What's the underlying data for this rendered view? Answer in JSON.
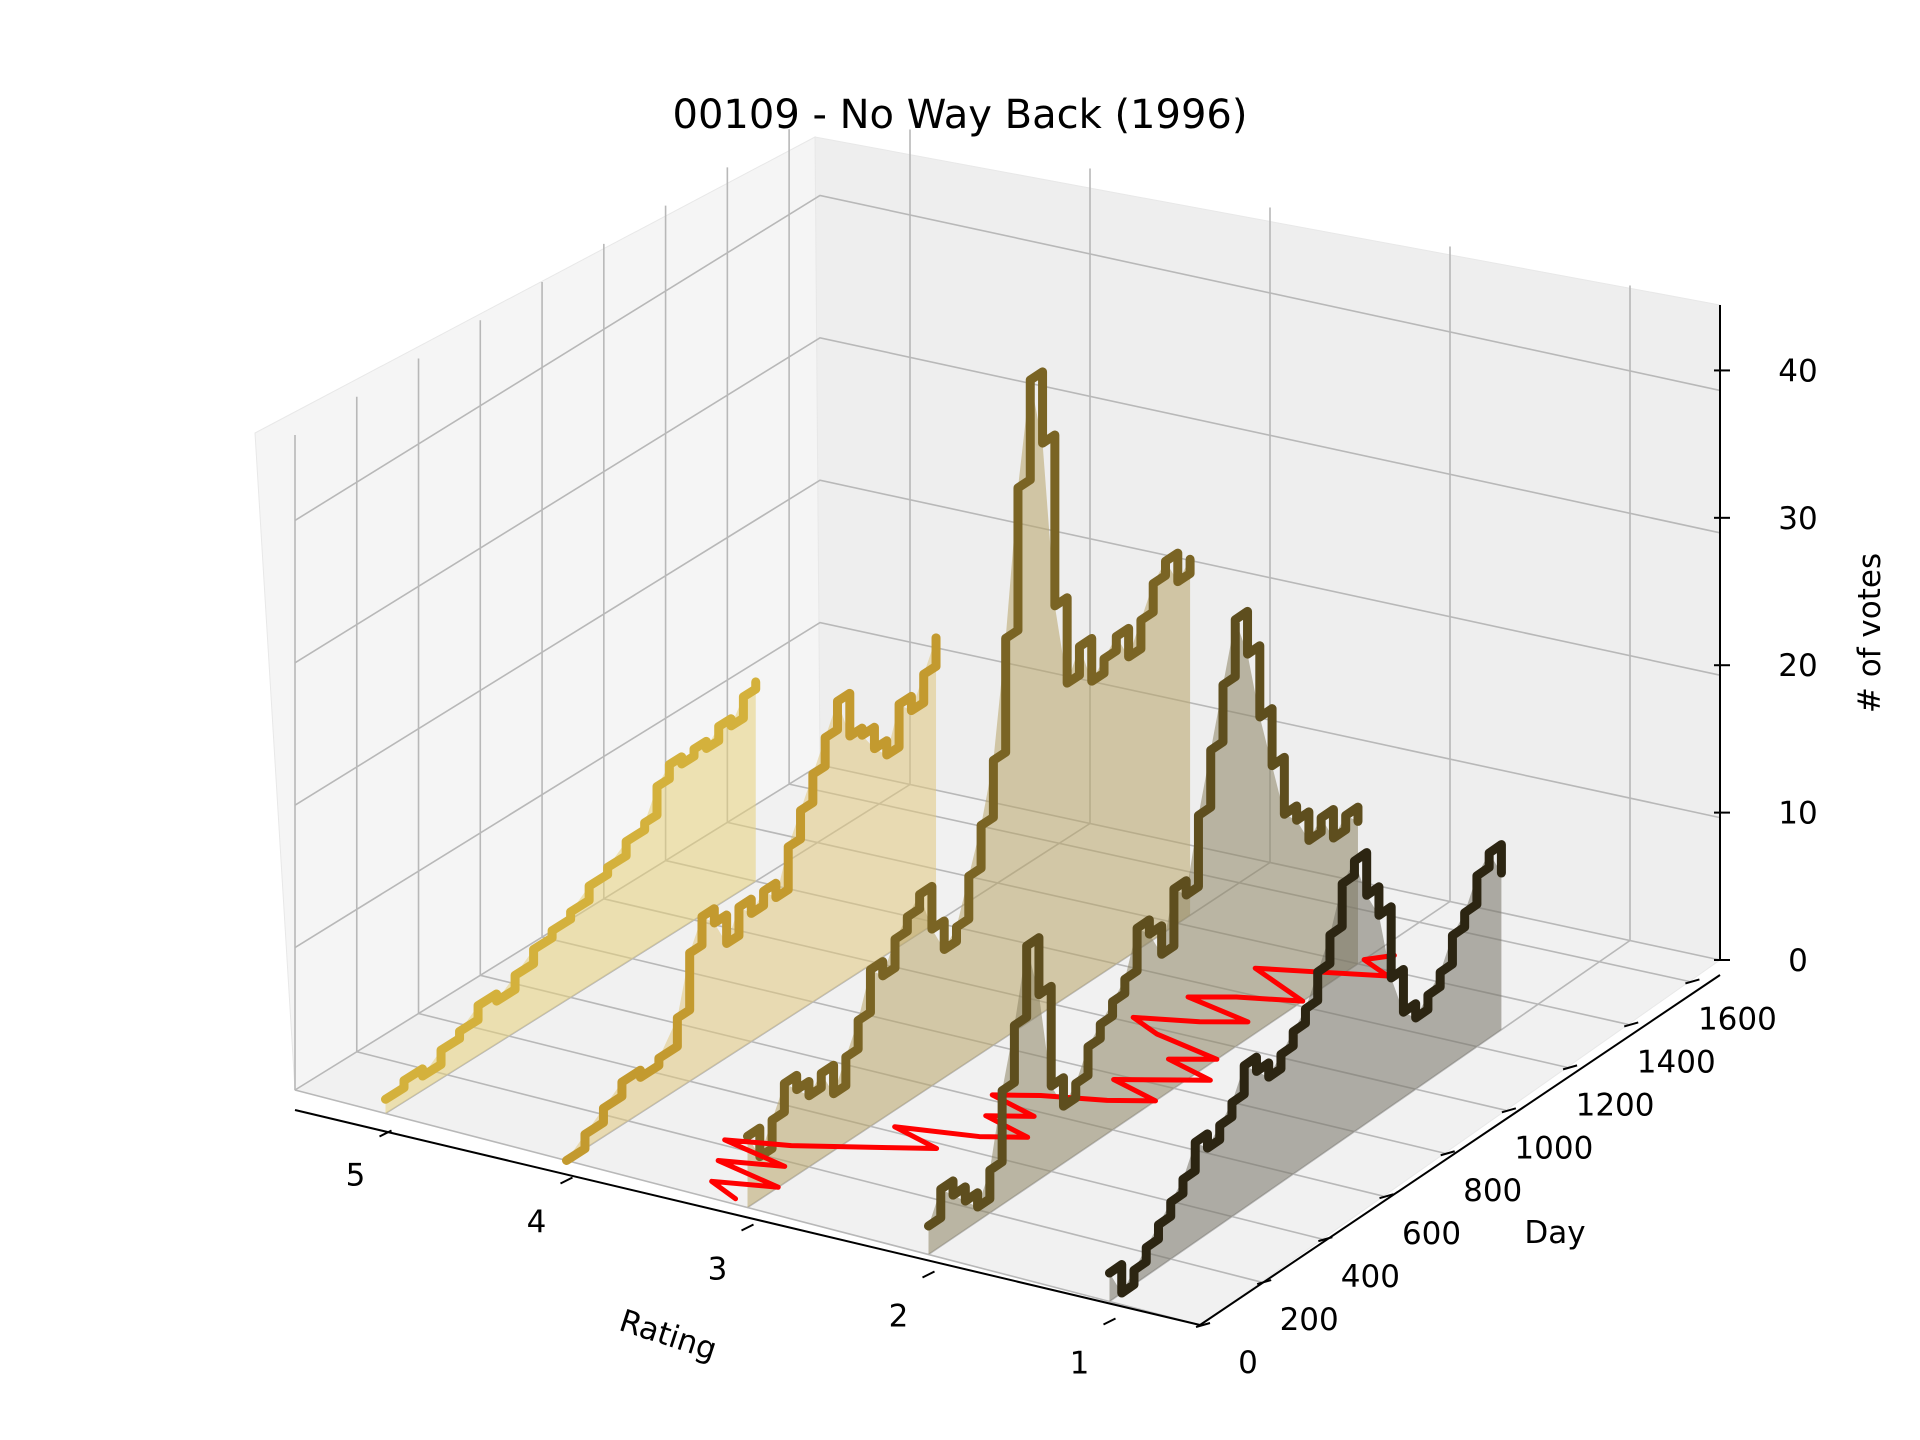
{
  "chart_data": {
    "type": "line3d",
    "title": "00109 - No Way Back (1996)",
    "xlabel": "Rating",
    "ylabel": "Day",
    "zlabel": "# of votes",
    "x_ticks": [
      "1",
      "2",
      "3",
      "4",
      "5"
    ],
    "y_ticks": [
      "0",
      "200",
      "400",
      "600",
      "800",
      "1000",
      "1200",
      "1400",
      "1600"
    ],
    "z_ticks": [
      "0",
      "10",
      "20",
      "30",
      "40"
    ],
    "xlim": [
      0.5,
      5.5
    ],
    "ylim": [
      0,
      1700
    ],
    "zlim": [
      0,
      46
    ],
    "grid": true,
    "series": [
      {
        "name": "5",
        "rating": 5,
        "color": "#d4b13c",
        "fill": "#e6cf7a",
        "days": [
          0,
          60,
          120,
          180,
          240,
          300,
          360,
          420,
          480,
          540,
          600,
          660,
          720,
          780,
          840,
          880,
          920,
          960,
          1000,
          1040,
          1080,
          1120,
          1160,
          1200
        ],
        "votes": [
          1,
          1.5,
          1,
          2,
          2.5,
          3.5,
          3,
          4,
          5,
          5.5,
          6,
          7,
          7.5,
          8.5,
          9,
          11,
          12,
          11.5,
          12,
          11.5,
          12.5,
          12,
          13.5,
          14
        ]
      },
      {
        "name": "4",
        "rating": 4,
        "color": "#c39a2f",
        "fill": "#e0c77d",
        "days": [
          0,
          60,
          120,
          180,
          240,
          300,
          360,
          400,
          440,
          480,
          520,
          560,
          600,
          640,
          680,
          720,
          760,
          800,
          840,
          880,
          920,
          960,
          1000,
          1040,
          1080,
          1120,
          1160,
          1200
        ],
        "votes": [
          0,
          1,
          2,
          3,
          2.5,
          3,
          5,
          9,
          11,
          10,
          8,
          10,
          9,
          10,
          9,
          12,
          14,
          16,
          18,
          20,
          17,
          16.5,
          15,
          14,
          17,
          16,
          18,
          20
        ]
      },
      {
        "name": "3",
        "rating": 3,
        "color": "#7a6424",
        "fill": "#b8a468",
        "days": [
          0,
          40,
          80,
          120,
          160,
          200,
          240,
          280,
          320,
          360,
          400,
          440,
          480,
          520,
          560,
          600,
          640,
          680,
          720,
          760,
          800,
          840,
          880,
          920,
          960,
          1000,
          1040,
          1080,
          1120,
          1160,
          1200,
          1240,
          1280,
          1320,
          1360,
          1400,
          1440
        ],
        "votes": [
          5,
          3,
          5,
          7,
          6,
          5,
          6,
          4,
          6,
          8,
          11,
          10,
          12,
          13,
          14,
          11,
          9,
          10,
          13,
          16,
          20,
          28,
          38,
          45,
          40,
          28,
          22,
          24,
          21,
          22,
          23,
          21,
          23,
          25,
          26,
          24,
          25
        ]
      },
      {
        "name": "2",
        "rating": 2,
        "color": "#5e4e1e",
        "fill": "#8d8462",
        "days": [
          0,
          40,
          80,
          120,
          160,
          200,
          240,
          280,
          320,
          360,
          400,
          440,
          480,
          520,
          560,
          600,
          640,
          680,
          720,
          760,
          800,
          840,
          880,
          920,
          960,
          1000,
          1040,
          1080,
          1120,
          1160,
          1200,
          1240,
          1280,
          1320,
          1360,
          1400
        ],
        "votes": [
          2,
          4,
          3,
          2,
          1,
          3,
          8,
          12,
          17,
          13,
          6,
          4,
          5,
          7,
          8,
          9,
          10,
          13,
          12,
          10,
          14,
          13,
          18,
          22,
          26,
          30,
          27,
          22,
          18,
          14,
          13,
          11,
          12,
          10,
          11,
          10
        ]
      },
      {
        "name": "1",
        "rating": 1,
        "color": "#2c2512",
        "fill": "#757165",
        "days": [
          0,
          40,
          80,
          120,
          160,
          200,
          240,
          280,
          320,
          360,
          400,
          440,
          480,
          520,
          560,
          600,
          640,
          680,
          720,
          760,
          800,
          840,
          880,
          920,
          960,
          1000,
          1040,
          1080,
          1120,
          1160,
          1200,
          1240,
          1280
        ],
        "votes": [
          2,
          0,
          1,
          2,
          3,
          4,
          5,
          7,
          6,
          7,
          8,
          10,
          9,
          8,
          9,
          10,
          11,
          13,
          15,
          18,
          19,
          16,
          14,
          9,
          6,
          5,
          6,
          7,
          9,
          10,
          12,
          13,
          11
        ]
      }
    ],
    "mean_series": {
      "name": "mean rating",
      "color": "#ff0000",
      "z": 0,
      "days": [
        20,
        60,
        100,
        140,
        180,
        220,
        260,
        300,
        340,
        380,
        420,
        460,
        500,
        540,
        580,
        620,
        660,
        700,
        740,
        780,
        820,
        860,
        900,
        940,
        980,
        1020,
        1060,
        1100,
        1140,
        1180,
        1220,
        1260,
        1300,
        1340,
        1380,
        1420,
        1460
      ],
      "ratings": [
        3.1,
        3.3,
        3.0,
        3.4,
        3.1,
        3.5,
        3.2,
        3.0,
        2.8,
        2.6,
        2.9,
        2.5,
        2.3,
        2.6,
        2.4,
        2.7,
        2.5,
        2.2,
        2.0,
        2.3,
        2.1,
        1.9,
        2.2,
        2.0,
        2.4,
        2.6,
        2.3,
        2.1,
        2.5,
        2.3,
        2.0,
        2.2,
        2.4,
        2.1,
        1.8,
        2.0,
        1.9
      ]
    }
  }
}
